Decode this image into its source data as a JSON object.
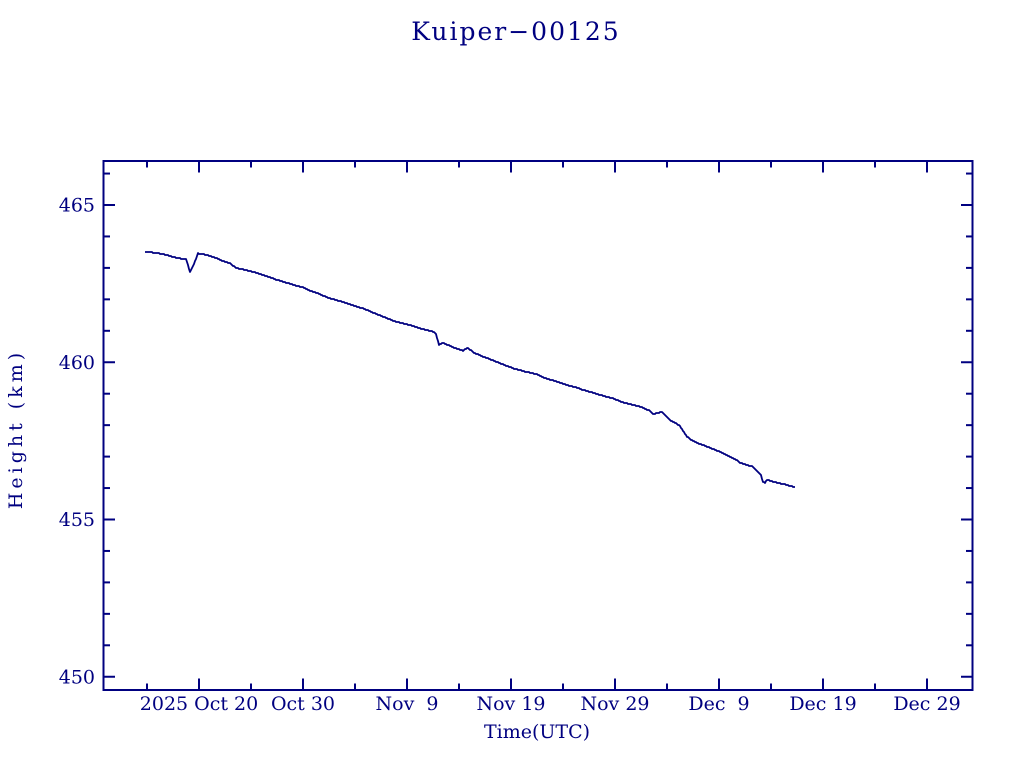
{
  "colors": {
    "ink": "#000080",
    "background": "#ffffff"
  },
  "chart_data": {
    "type": "line",
    "title": "Kuiper−00125",
    "xlabel": "Time(UTC)",
    "ylabel": "Height (km)",
    "x_epoch": "days since 2025 Oct 15 00:00 UTC",
    "x_range_days": [
      -4.25,
      79.3
    ],
    "y_range_km": [
      449.57,
      466.43
    ],
    "grid": false,
    "x_major_ticks": [
      {
        "day": 5,
        "label": "2025 Oct 20"
      },
      {
        "day": 15,
        "label": "Oct 30"
      },
      {
        "day": 25,
        "label": "Nov  9"
      },
      {
        "day": 35,
        "label": "Nov 19"
      },
      {
        "day": 45,
        "label": "Nov 29"
      },
      {
        "day": 55,
        "label": "Dec  9"
      },
      {
        "day": 65,
        "label": "Dec 19"
      },
      {
        "day": 75,
        "label": "Dec 29"
      }
    ],
    "x_minor_ticks_days": [
      0,
      10,
      20,
      30,
      40,
      50,
      60,
      70
    ],
    "y_major_ticks": [
      450,
      455,
      460,
      465
    ],
    "y_minor_ticks": [
      451,
      452,
      453,
      454,
      456,
      457,
      458,
      459,
      461,
      462,
      463,
      464,
      466
    ],
    "series": [
      {
        "name": "Kuiper-00125 height",
        "color": "#000080",
        "points": [
          [
            -0.19,
            463.52
          ],
          [
            0.77,
            463.48
          ],
          [
            1.54,
            463.44
          ],
          [
            2.4,
            463.36
          ],
          [
            3.17,
            463.3
          ],
          [
            3.75,
            463.27
          ],
          [
            3.94,
            463.1
          ],
          [
            4.13,
            462.86
          ],
          [
            4.42,
            463.05
          ],
          [
            4.9,
            463.46
          ],
          [
            5.77,
            463.41
          ],
          [
            6.54,
            463.33
          ],
          [
            7.21,
            463.23
          ],
          [
            7.98,
            463.14
          ],
          [
            8.56,
            463.0
          ],
          [
            9.23,
            462.95
          ],
          [
            9.9,
            462.9
          ],
          [
            10.48,
            462.85
          ],
          [
            11.15,
            462.77
          ],
          [
            11.83,
            462.7
          ],
          [
            12.4,
            462.63
          ],
          [
            13.08,
            462.56
          ],
          [
            13.75,
            462.5
          ],
          [
            14.33,
            462.44
          ],
          [
            15.0,
            462.38
          ],
          [
            15.67,
            462.28
          ],
          [
            16.35,
            462.2
          ],
          [
            16.92,
            462.12
          ],
          [
            17.6,
            462.03
          ],
          [
            18.27,
            461.97
          ],
          [
            18.85,
            461.92
          ],
          [
            19.52,
            461.84
          ],
          [
            20.19,
            461.77
          ],
          [
            20.77,
            461.71
          ],
          [
            21.44,
            461.62
          ],
          [
            22.12,
            461.53
          ],
          [
            22.69,
            461.45
          ],
          [
            23.37,
            461.36
          ],
          [
            23.85,
            461.3
          ],
          [
            24.33,
            461.26
          ],
          [
            25.29,
            461.18
          ],
          [
            26.25,
            461.08
          ],
          [
            27.21,
            461.0
          ],
          [
            27.5,
            460.97
          ],
          [
            27.79,
            460.9
          ],
          [
            28.08,
            460.56
          ],
          [
            28.46,
            460.62
          ],
          [
            28.94,
            460.55
          ],
          [
            29.62,
            460.45
          ],
          [
            30.1,
            460.4
          ],
          [
            30.38,
            460.37
          ],
          [
            30.87,
            460.46
          ],
          [
            31.35,
            460.32
          ],
          [
            32.31,
            460.18
          ],
          [
            32.98,
            460.1
          ],
          [
            33.94,
            459.97
          ],
          [
            34.62,
            459.88
          ],
          [
            35.19,
            459.81
          ],
          [
            36.15,
            459.72
          ],
          [
            36.83,
            459.67
          ],
          [
            37.5,
            459.62
          ],
          [
            38.08,
            459.52
          ],
          [
            38.75,
            459.45
          ],
          [
            39.42,
            459.38
          ],
          [
            40.0,
            459.32
          ],
          [
            40.67,
            459.25
          ],
          [
            41.35,
            459.19
          ],
          [
            41.92,
            459.12
          ],
          [
            42.6,
            459.06
          ],
          [
            43.17,
            459.0
          ],
          [
            43.56,
            458.96
          ],
          [
            44.23,
            458.9
          ],
          [
            44.81,
            458.85
          ],
          [
            45.48,
            458.76
          ],
          [
            46.15,
            458.69
          ],
          [
            46.73,
            458.64
          ],
          [
            47.4,
            458.59
          ],
          [
            47.88,
            458.52
          ],
          [
            48.37,
            458.46
          ],
          [
            48.65,
            458.35
          ],
          [
            49.04,
            458.38
          ],
          [
            49.52,
            458.43
          ],
          [
            49.9,
            458.3
          ],
          [
            50.29,
            458.15
          ],
          [
            50.77,
            458.08
          ],
          [
            51.25,
            457.97
          ],
          [
            51.92,
            457.63
          ],
          [
            52.5,
            457.5
          ],
          [
            53.17,
            457.4
          ],
          [
            53.46,
            457.37
          ],
          [
            54.13,
            457.28
          ],
          [
            54.62,
            457.22
          ],
          [
            55.1,
            457.15
          ],
          [
            55.77,
            457.05
          ],
          [
            56.35,
            456.95
          ],
          [
            56.73,
            456.89
          ],
          [
            57.02,
            456.8
          ],
          [
            57.31,
            456.78
          ],
          [
            57.79,
            456.72
          ],
          [
            58.27,
            456.68
          ],
          [
            58.75,
            456.5
          ],
          [
            59.04,
            456.4
          ],
          [
            59.23,
            456.2
          ],
          [
            59.42,
            456.16
          ],
          [
            59.62,
            456.26
          ],
          [
            59.9,
            456.24
          ],
          [
            60.19,
            456.2
          ],
          [
            60.87,
            456.15
          ],
          [
            61.54,
            456.1
          ],
          [
            61.92,
            456.06
          ],
          [
            62.31,
            456.02
          ]
        ]
      }
    ]
  }
}
